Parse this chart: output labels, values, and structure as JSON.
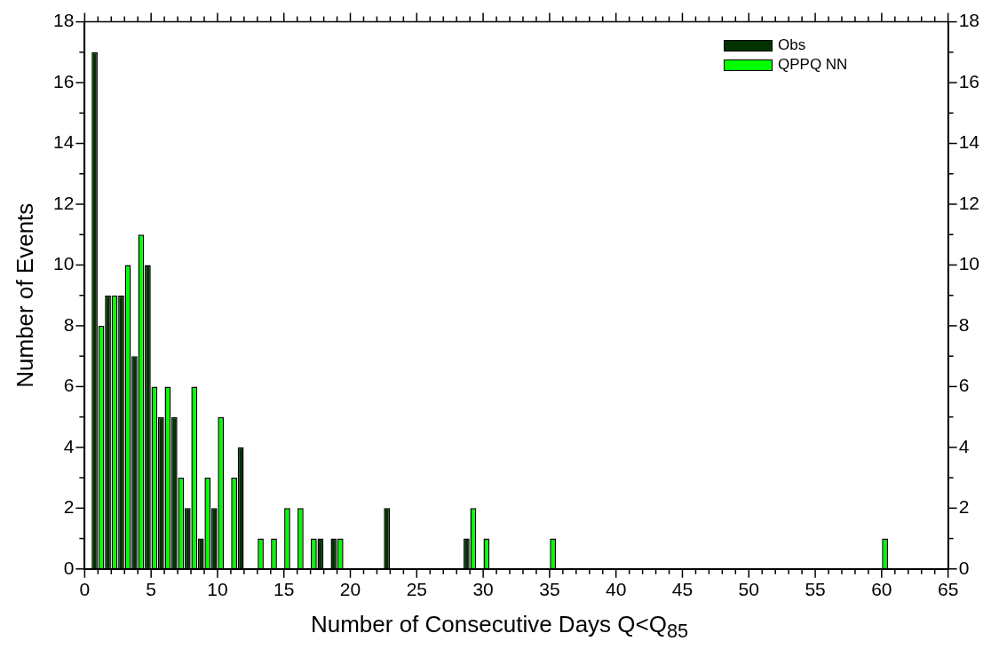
{
  "chart_data": {
    "type": "bar",
    "xlabel": "Number of Consecutive Days Q<Q$_{85}$",
    "ylabel": "Number of Events",
    "x": [
      1,
      2,
      3,
      4,
      5,
      6,
      7,
      8,
      9,
      10,
      11,
      12,
      13,
      14,
      15,
      16,
      17,
      18,
      19,
      23,
      29,
      30,
      35,
      60
    ],
    "series": [
      {
        "name": "Obs",
        "color": "#003300",
        "values": [
          17,
          9,
          9,
          7,
          10,
          5,
          5,
          2,
          1,
          2,
          0,
          4,
          0,
          0,
          0,
          0,
          0,
          1,
          1,
          2,
          1,
          0,
          0,
          0
        ]
      },
      {
        "name": "QPPQ NN",
        "color": "#00ff00",
        "values": [
          8,
          9,
          10,
          11,
          6,
          6,
          3,
          6,
          3,
          5,
          3,
          0,
          1,
          1,
          2,
          2,
          1,
          0,
          1,
          0,
          2,
          1,
          1,
          1
        ]
      }
    ],
    "xlim": [
      0,
      65
    ],
    "xticks": [
      0,
      {
        "value": 1,
        "label": null
      },
      {
        "value": 2,
        "label": null
      },
      {
        "value": 3,
        "label": null
      },
      {
        "value": 4,
        "label": null
      },
      5,
      {
        "value": 6,
        "label": null
      },
      {
        "value": 7,
        "label": null
      },
      {
        "value": 8,
        "label": null
      },
      {
        "value": 9,
        "label": null
      },
      10,
      {
        "value": 11,
        "label": null
      },
      {
        "value": 12,
        "label": null
      },
      {
        "value": 13,
        "label": null
      },
      {
        "value": 14,
        "label": null
      },
      15,
      {
        "value": 16,
        "label": null
      },
      {
        "value": 17,
        "label": null
      },
      {
        "value": 18,
        "label": null
      },
      {
        "value": 19,
        "label": null
      },
      20,
      {
        "value": 21,
        "label": null
      },
      {
        "value": 22,
        "label": null
      },
      {
        "value": 23,
        "label": null
      },
      {
        "value": 24,
        "label": null
      },
      25,
      {
        "value": 26,
        "label": null
      },
      {
        "value": 27,
        "label": null
      },
      {
        "value": 28,
        "label": null
      },
      {
        "value": 29,
        "label": null
      },
      30,
      {
        "value": 31,
        "label": null
      },
      {
        "value": 32,
        "label": null
      },
      {
        "value": 33,
        "label": null
      },
      {
        "value": 34,
        "label": null
      },
      35,
      {
        "value": 36,
        "label": null
      },
      {
        "value": 37,
        "label": null
      },
      {
        "value": 38,
        "label": null
      },
      {
        "value": 39,
        "label": null
      },
      40,
      {
        "value": 41,
        "label": null
      },
      {
        "value": 42,
        "label": null
      },
      {
        "value": 43,
        "label": null
      },
      {
        "value": 44,
        "label": null
      },
      45,
      {
        "value": 46,
        "label": null
      },
      {
        "value": 47,
        "label": null
      },
      {
        "value": 48,
        "label": null
      },
      {
        "value": 49,
        "label": null
      },
      50,
      {
        "value": 51,
        "label": null
      },
      {
        "value": 52,
        "label": null
      },
      {
        "value": 53,
        "label": null
      },
      {
        "value": 54,
        "label": null
      },
      55,
      {
        "value": 56,
        "label": null
      },
      {
        "value": 57,
        "label": null
      },
      {
        "value": 58,
        "label": null
      },
      {
        "value": 59,
        "label": null
      },
      60,
      {
        "value": 61,
        "label": null
      },
      {
        "value": 62,
        "label": null
      },
      {
        "value": 63,
        "label": null
      },
      {
        "value": 64,
        "label": null
      },
      65
    ],
    "ylim": [
      0,
      18
    ],
    "yticks": [
      0,
      {
        "value": 1,
        "label": null
      },
      2,
      {
        "value": 3,
        "label": null
      },
      4,
      {
        "value": 5,
        "label": null
      },
      6,
      {
        "value": 7,
        "label": null
      },
      8,
      {
        "value": 9,
        "label": null
      },
      10,
      {
        "value": 11,
        "label": null
      },
      12,
      {
        "value": 13,
        "label": null
      },
      14,
      {
        "value": 15,
        "label": null
      },
      16,
      {
        "value": 17,
        "label": null
      },
      18
    ],
    "y2lim": [
      0,
      18
    ],
    "y2ticks": [
      0,
      {
        "value": 1,
        "label": null
      },
      2,
      {
        "value": 3,
        "label": null
      },
      4,
      {
        "value": 5,
        "label": null
      },
      6,
      {
        "value": 7,
        "label": null
      },
      8,
      {
        "value": 9,
        "label": null
      },
      10,
      {
        "value": 11,
        "label": null
      },
      12,
      {
        "value": 13,
        "label": null
      },
      14,
      {
        "value": 15,
        "label": null
      },
      16,
      {
        "value": 17,
        "label": null
      },
      18
    ],
    "grid": false,
    "legend": "top right"
  }
}
